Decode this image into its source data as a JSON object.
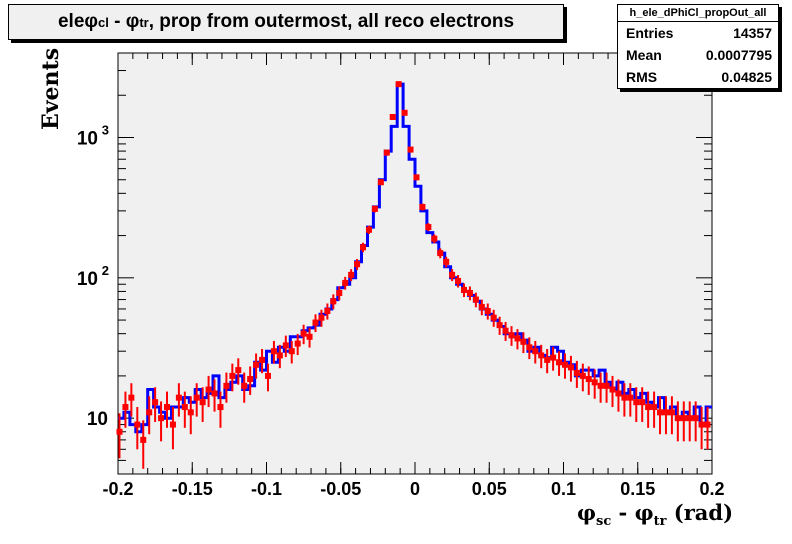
{
  "title": {
    "prefix": "ele ",
    "phi1": "φ",
    "sub1": "cl",
    "mid": " - ",
    "phi2": "φ",
    "sub2": "tr",
    "suffix": ", prop from outermost, all reco electrons"
  },
  "stats": {
    "name": "h_ele_dPhiCl_propOut_all",
    "rows": [
      {
        "label": "Entries",
        "value": "14357"
      },
      {
        "label": "Mean",
        "value": "0.0007795"
      },
      {
        "label": "RMS",
        "value": "0.04825"
      }
    ]
  },
  "axis_labels": {
    "y": "Events",
    "x_phi1": "φ",
    "x_sub1": "sc",
    "x_mid": " - ",
    "x_phi2": "φ",
    "x_sub2": "tr",
    "x_suffix": " (rad)"
  },
  "colors": {
    "frame_bg": "#f0f0f0",
    "histogram": "#0000ff",
    "points": "#ff0000"
  },
  "chart_data": {
    "type": "line",
    "xlim": [
      -0.2,
      0.2
    ],
    "ylim": [
      4,
      4000
    ],
    "yscale": "log",
    "x_ticks": [
      {
        "value": -0.2,
        "label": "-0.2"
      },
      {
        "value": -0.15,
        "label": "-0.15"
      },
      {
        "value": -0.1,
        "label": "-0.1"
      },
      {
        "value": -0.05,
        "label": "-0.05"
      },
      {
        "value": 0,
        "label": "0"
      },
      {
        "value": 0.05,
        "label": "0.05"
      },
      {
        "value": 0.1,
        "label": "0.1"
      },
      {
        "value": 0.15,
        "label": "0.15"
      },
      {
        "value": 0.2,
        "label": "0.2"
      }
    ],
    "y_ticks": [
      {
        "value": 10,
        "label": "10"
      },
      {
        "value": 100,
        "label": "10",
        "exp": "2"
      },
      {
        "value": 1000,
        "label": "10",
        "exp": "3"
      }
    ],
    "series": [
      {
        "kind": "histogram",
        "bin_width": 0.004,
        "x": [
          -0.198,
          -0.194,
          -0.19,
          -0.186,
          -0.182,
          -0.178,
          -0.174,
          -0.17,
          -0.166,
          -0.162,
          -0.158,
          -0.154,
          -0.15,
          -0.146,
          -0.142,
          -0.138,
          -0.134,
          -0.13,
          -0.126,
          -0.122,
          -0.118,
          -0.114,
          -0.11,
          -0.106,
          -0.102,
          -0.098,
          -0.094,
          -0.09,
          -0.086,
          -0.082,
          -0.078,
          -0.074,
          -0.07,
          -0.066,
          -0.062,
          -0.058,
          -0.054,
          -0.05,
          -0.046,
          -0.042,
          -0.038,
          -0.034,
          -0.03,
          -0.026,
          -0.022,
          -0.018,
          -0.014,
          -0.01,
          -0.006,
          -0.002,
          0.002,
          0.006,
          0.01,
          0.014,
          0.018,
          0.022,
          0.026,
          0.03,
          0.034,
          0.038,
          0.042,
          0.046,
          0.05,
          0.054,
          0.058,
          0.062,
          0.066,
          0.07,
          0.074,
          0.078,
          0.082,
          0.086,
          0.09,
          0.094,
          0.098,
          0.102,
          0.106,
          0.11,
          0.114,
          0.118,
          0.122,
          0.126,
          0.13,
          0.134,
          0.138,
          0.142,
          0.146,
          0.15,
          0.154,
          0.158,
          0.162,
          0.166,
          0.17,
          0.174,
          0.178,
          0.182,
          0.186,
          0.19,
          0.194,
          0.198
        ],
        "values": [
          10,
          11,
          9,
          8,
          9,
          16,
          12,
          11,
          10,
          12,
          12,
          14,
          13,
          16,
          14,
          15,
          20,
          14,
          16,
          18,
          20,
          16,
          17,
          25,
          22,
          30,
          25,
          32,
          30,
          38,
          38,
          42,
          44,
          46,
          55,
          60,
          70,
          85,
          90,
          100,
          130,
          170,
          230,
          320,
          500,
          800,
          1200,
          2400,
          1200,
          700,
          450,
          300,
          210,
          180,
          150,
          120,
          100,
          90,
          80,
          75,
          68,
          60,
          55,
          50,
          45,
          40,
          38,
          40,
          36,
          30,
          32,
          28,
          27,
          32,
          30,
          25,
          24,
          20,
          22,
          22,
          20,
          22,
          18,
          16,
          18,
          15,
          16,
          14,
          15,
          13,
          12,
          14,
          11,
          12,
          10,
          11,
          10,
          12,
          9,
          12
        ]
      },
      {
        "kind": "points",
        "x": [
          -0.199,
          -0.195,
          -0.191,
          -0.187,
          -0.183,
          -0.179,
          -0.175,
          -0.171,
          -0.167,
          -0.163,
          -0.159,
          -0.155,
          -0.151,
          -0.147,
          -0.143,
          -0.139,
          -0.135,
          -0.131,
          -0.127,
          -0.123,
          -0.119,
          -0.115,
          -0.111,
          -0.107,
          -0.103,
          -0.099,
          -0.095,
          -0.091,
          -0.087,
          -0.083,
          -0.079,
          -0.075,
          -0.071,
          -0.067,
          -0.063,
          -0.059,
          -0.055,
          -0.051,
          -0.047,
          -0.043,
          -0.039,
          -0.035,
          -0.031,
          -0.027,
          -0.023,
          -0.019,
          -0.015,
          -0.011,
          -0.007,
          -0.003,
          0.001,
          0.005,
          0.009,
          0.013,
          0.017,
          0.021,
          0.025,
          0.029,
          0.033,
          0.037,
          0.041,
          0.045,
          0.049,
          0.053,
          0.057,
          0.061,
          0.065,
          0.069,
          0.073,
          0.077,
          0.081,
          0.085,
          0.089,
          0.093,
          0.097,
          0.101,
          0.105,
          0.109,
          0.113,
          0.117,
          0.121,
          0.125,
          0.129,
          0.133,
          0.137,
          0.141,
          0.145,
          0.149,
          0.153,
          0.157,
          0.161,
          0.165,
          0.169,
          0.173,
          0.177,
          0.181,
          0.185,
          0.189,
          0.193,
          0.197
        ],
        "values": [
          8,
          12,
          14,
          9,
          7,
          11,
          13,
          10,
          12,
          9,
          14,
          12,
          11,
          14,
          13,
          16,
          15,
          12,
          17,
          20,
          22,
          17,
          19,
          24,
          26,
          20,
          30,
          28,
          33,
          30,
          34,
          40,
          38,
          48,
          52,
          58,
          68,
          78,
          92,
          105,
          125,
          165,
          220,
          310,
          480,
          780,
          1400,
          2400,
          1500,
          820,
          520,
          320,
          230,
          190,
          150,
          130,
          105,
          95,
          82,
          78,
          70,
          62,
          58,
          52,
          46,
          42,
          39,
          37,
          35,
          32,
          30,
          28,
          26,
          27,
          25,
          24,
          23,
          21,
          20,
          19,
          18,
          17,
          17,
          16,
          15,
          14,
          14,
          13,
          13,
          12,
          12,
          11,
          11,
          11,
          10,
          10,
          10,
          10,
          9,
          9
        ]
      }
    ]
  }
}
